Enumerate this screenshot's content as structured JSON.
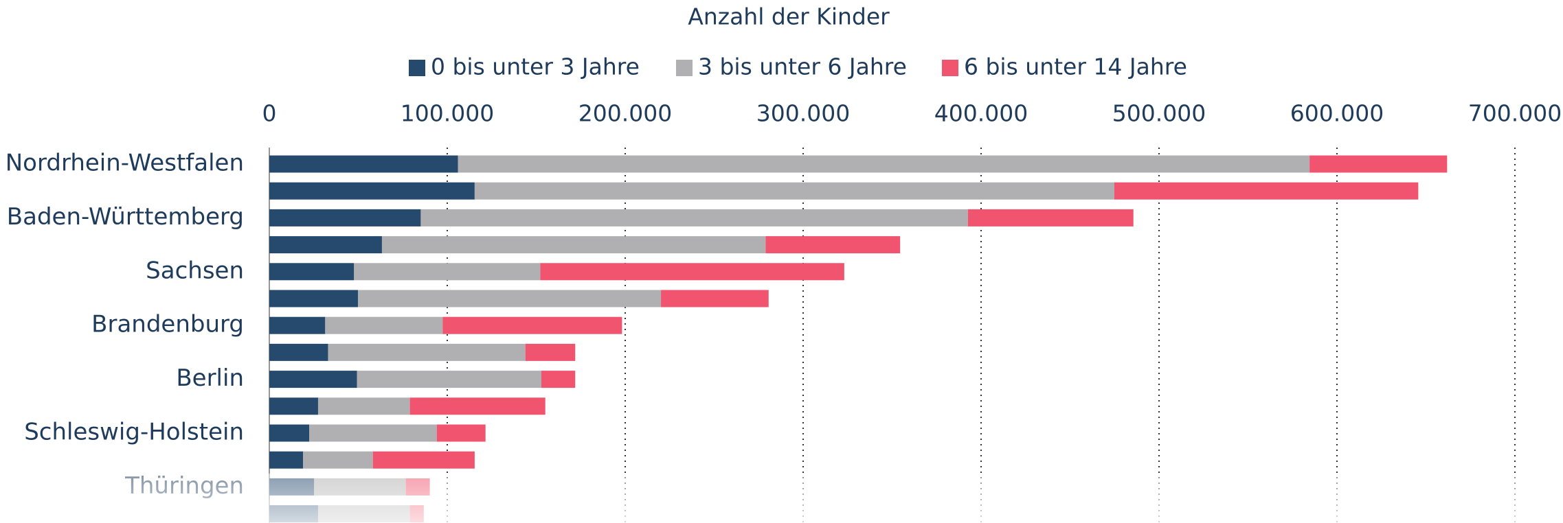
{
  "chart_data": {
    "type": "stacked-bar-horizontal",
    "title": "Anzahl der Kinder",
    "categories": [
      "Nordrhein-Westfalen",
      null,
      "Baden-Württemberg",
      null,
      "Sachsen",
      null,
      "Brandenburg",
      null,
      "Berlin",
      null,
      "Schleswig-Holstein",
      null,
      "Thüringen",
      null
    ],
    "series": [
      {
        "name": "0 bis unter 3 Jahre",
        "color": "#264a6e",
        "values": [
          106000,
          115400,
          85100,
          63300,
          47600,
          49800,
          31400,
          33000,
          49300,
          27400,
          22400,
          19000,
          25200,
          27400
        ]
      },
      {
        "name": "3 bis unter 6 Jahre",
        "color": "#b0b0b2",
        "values": [
          478600,
          359500,
          307500,
          215600,
          104700,
          170300,
          66000,
          110900,
          103600,
          51600,
          71700,
          39200,
          51500,
          51600
        ]
      },
      {
        "name": "6 bis unter 14 Jahre",
        "color": "#f0546e",
        "values": [
          77300,
          170800,
          93000,
          75600,
          170800,
          60500,
          100800,
          28000,
          19000,
          76100,
          27400,
          57200,
          13500,
          7800
        ]
      }
    ],
    "xlim": [
      0,
      700000
    ],
    "xticks": [
      0,
      {
        "value": 100000,
        "label": "100.000"
      },
      {
        "value": 200000,
        "label": "200.000"
      },
      {
        "value": 300000,
        "label": "300.000"
      },
      {
        "value": 400000,
        "label": "400.000"
      },
      {
        "value": 500000,
        "label": "500.000"
      },
      {
        "value": 600000,
        "label": "600.000"
      },
      {
        "value": 700000,
        "label": "700.000"
      }
    ],
    "grid": true,
    "legend": "top"
  }
}
